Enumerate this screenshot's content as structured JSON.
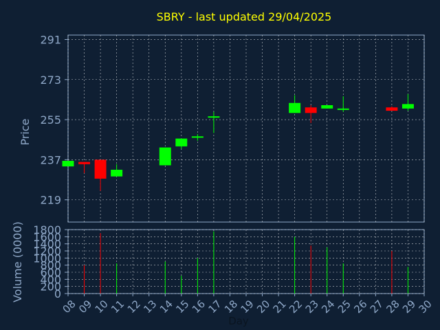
{
  "chart_data": [
    {
      "type": "candlestick",
      "title": "SBRY - last updated 29/04/2025",
      "ylabel": "Price",
      "ylim": [
        209,
        293
      ],
      "yticks": [
        219,
        237,
        255,
        273,
        291
      ],
      "x_days": [
        8,
        9,
        10,
        11,
        12,
        13,
        14,
        15,
        16,
        17,
        18,
        19,
        20,
        21,
        22,
        23,
        24,
        25,
        26,
        27,
        28,
        29,
        30
      ],
      "xlim": [
        8,
        30
      ],
      "grid": true,
      "colors": {
        "up": "#00ff00",
        "down": "#ff0000",
        "title": "#ffff00",
        "axis_text": "#8fa8c8",
        "frame": "#8fa8c8",
        "grid": "#ffffff",
        "background": "#0f1f33"
      },
      "candles": [
        {
          "day": 8,
          "open": 234.0,
          "close": 236.5,
          "high": 236.5,
          "low": 234.0
        },
        {
          "day": 9,
          "open": 236.0,
          "close": 235.0,
          "high": 236.0,
          "low": 231.0
        },
        {
          "day": 10,
          "open": 237.0,
          "close": 228.5,
          "high": 237.0,
          "low": 223.0
        },
        {
          "day": 11,
          "open": 229.5,
          "close": 232.5,
          "high": 235.0,
          "low": 229.5
        },
        {
          "day": 14,
          "open": 234.5,
          "close": 242.5,
          "high": 242.5,
          "low": 234.5
        },
        {
          "day": 15,
          "open": 243.0,
          "close": 246.5,
          "high": 246.5,
          "low": 242.0
        },
        {
          "day": 16,
          "open": 247.0,
          "close": 247.5,
          "high": 248.5,
          "low": 245.5
        },
        {
          "day": 17,
          "open": 256.0,
          "close": 256.5,
          "high": 258.5,
          "low": 249.0
        },
        {
          "day": 22,
          "open": 258.0,
          "close": 262.5,
          "high": 266.0,
          "low": 258.0
        },
        {
          "day": 23,
          "open": 260.5,
          "close": 258.0,
          "high": 261.5,
          "low": 253.5
        },
        {
          "day": 24,
          "open": 260.0,
          "close": 261.5,
          "high": 261.5,
          "low": 260.0
        },
        {
          "day": 25,
          "open": 259.5,
          "close": 260.0,
          "high": 265.5,
          "low": 258.5
        },
        {
          "day": 28,
          "open": 260.5,
          "close": 259.0,
          "high": 261.0,
          "low": 259.0
        },
        {
          "day": 29,
          "open": 260.0,
          "close": 262.0,
          "high": 266.5,
          "low": 259.0
        }
      ]
    },
    {
      "type": "bar",
      "ylabel": "Volume (0000)",
      "xlabel": "Day",
      "ylim": [
        0,
        1800
      ],
      "yticks": [
        0,
        200,
        400,
        600,
        800,
        1000,
        1200,
        1400,
        1600,
        1800
      ],
      "x_tick_labels": [
        "08",
        "09",
        "10",
        "11",
        "12",
        "13",
        "14",
        "15",
        "16",
        "17",
        "18",
        "19",
        "20",
        "21",
        "22",
        "23",
        "24",
        "25",
        "26",
        "27",
        "28",
        "29",
        "30"
      ],
      "bars": [
        {
          "day": 9,
          "value": 800,
          "direction": "down"
        },
        {
          "day": 10,
          "value": 1700,
          "direction": "down"
        },
        {
          "day": 11,
          "value": 850,
          "direction": "up"
        },
        {
          "day": 14,
          "value": 900,
          "direction": "up"
        },
        {
          "day": 15,
          "value": 500,
          "direction": "up"
        },
        {
          "day": 16,
          "value": 1000,
          "direction": "up"
        },
        {
          "day": 17,
          "value": 1750,
          "direction": "up"
        },
        {
          "day": 22,
          "value": 1600,
          "direction": "up"
        },
        {
          "day": 23,
          "value": 1350,
          "direction": "down"
        },
        {
          "day": 24,
          "value": 1300,
          "direction": "up"
        },
        {
          "day": 25,
          "value": 850,
          "direction": "up"
        },
        {
          "day": 28,
          "value": 1200,
          "direction": "down"
        },
        {
          "day": 29,
          "value": 750,
          "direction": "up"
        }
      ]
    }
  ]
}
